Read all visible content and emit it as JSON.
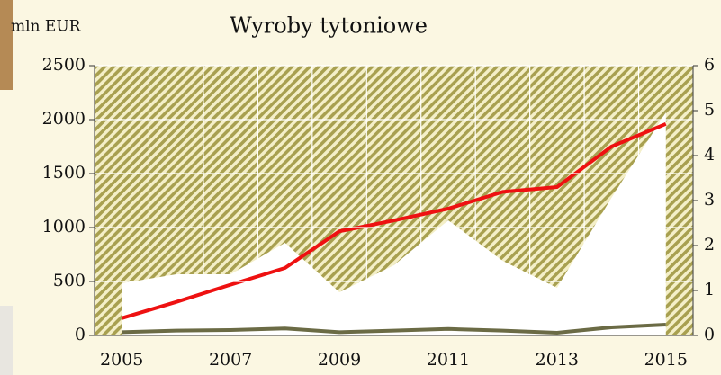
{
  "chart_data": {
    "type": "line",
    "title": "Wyroby tytoniowe",
    "y_label": "mln EUR",
    "categories": [
      "2005",
      null,
      "2007",
      null,
      "2009",
      null,
      "2011",
      null,
      "2013",
      null,
      "2015"
    ],
    "series": [
      {
        "type": "area",
        "axis": "y2",
        "color": "#ffffff",
        "values": [
          1.16,
          1.36,
          1.36,
          2.06,
          0.96,
          1.56,
          2.56,
          1.66,
          1.06,
          3.06,
          4.96
        ]
      },
      {
        "type": "line",
        "color": "#ee1111",
        "values": [
          160,
          310,
          470,
          625,
          965,
          1065,
          1175,
          1330,
          1375,
          1750,
          1960
        ]
      },
      {
        "type": "line",
        "color": "#6b6b45",
        "values": [
          30,
          45,
          50,
          65,
          30,
          45,
          60,
          45,
          25,
          75,
          100
        ]
      }
    ],
    "ylim": [
      0,
      2500
    ],
    "yticks": [
      0,
      500,
      1000,
      1500,
      2000,
      2500
    ],
    "y2lim": [
      0,
      6
    ],
    "y2ticks": [
      0,
      1,
      2,
      3,
      4,
      5,
      6
    ],
    "grid": true
  }
}
